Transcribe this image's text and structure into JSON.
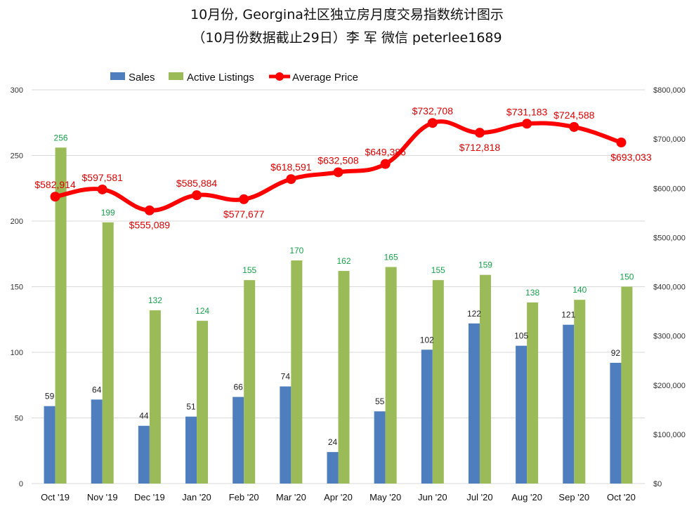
{
  "colors": {
    "sales": "#4f7ebf",
    "active": "#9bbb59",
    "price": "#ff0000",
    "active_label": "#16a34a",
    "price_label": "#e00000",
    "grid": "#d9d9d9"
  },
  "chart_data": {
    "type": "bar",
    "title_line1": "10月份, Georgina社区独立房月度交易指数统计图示",
    "title_line2": "（10月份数据截止29日）李 军  微信  peterlee1689",
    "categories": [
      "Oct '19",
      "Nov '19",
      "Dec '19",
      "Jan '20",
      "Feb '20",
      "Mar '20",
      "Apr '20",
      "May '20",
      "Jun '20",
      "Jul '20",
      "Aug '20",
      "Sep '20",
      "Oct '20"
    ],
    "series": [
      {
        "name": "Sales",
        "type": "bar",
        "axis": "left",
        "values": [
          59,
          64,
          44,
          51,
          66,
          74,
          24,
          55,
          102,
          122,
          105,
          121,
          92
        ],
        "labels": [
          "59",
          "64",
          "44",
          "51",
          "66",
          "74",
          "24",
          "55",
          "102",
          "122",
          "105",
          "121",
          "92"
        ]
      },
      {
        "name": "Active Listings",
        "type": "bar",
        "axis": "left",
        "values": [
          256,
          199,
          132,
          124,
          155,
          170,
          162,
          165,
          155,
          159,
          138,
          140,
          150
        ],
        "labels": [
          "256",
          "199",
          "132",
          "124",
          "155",
          "170",
          "162",
          "165",
          "155",
          "159",
          "138",
          "140",
          "150"
        ]
      },
      {
        "name": "Average Price",
        "type": "line",
        "axis": "right",
        "values": [
          582914,
          597581,
          555089,
          585884,
          577677,
          618591,
          632508,
          649386,
          732708,
          712818,
          731183,
          724588,
          693033
        ],
        "labels": [
          "$582,914",
          "$597,581",
          "$555,089",
          "$585,884",
          "$577,677",
          "$618,591",
          "$632,508",
          "$649,386",
          "$732,708",
          "$712,818",
          "$731,183",
          "$724,588",
          "$693,033"
        ]
      }
    ],
    "y_left": {
      "min": 0,
      "max": 300,
      "ticks": [
        0,
        50,
        100,
        150,
        200,
        250,
        300
      ],
      "tick_labels": [
        "0",
        "50",
        "100",
        "150",
        "200",
        "250",
        "300"
      ]
    },
    "y_right": {
      "min": 0,
      "max": 800000,
      "ticks": [
        0,
        100000,
        200000,
        300000,
        400000,
        500000,
        600000,
        700000,
        800000
      ],
      "tick_labels": [
        "$0",
        "$100,000",
        "$200,000",
        "$300,000",
        "$400,000",
        "$500,000",
        "$600,000",
        "$700,000",
        "$800,000"
      ]
    },
    "legend": [
      "Sales",
      "Active Listings",
      "Average Price"
    ],
    "legend_position": "top",
    "grid": true
  }
}
